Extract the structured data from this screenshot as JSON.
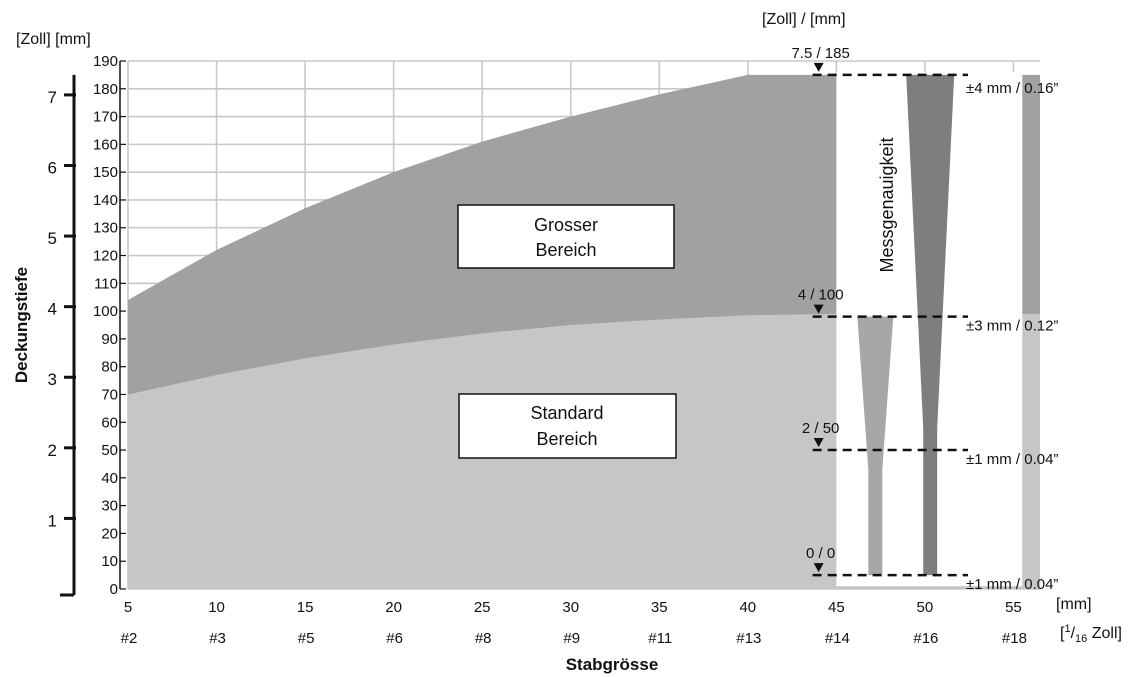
{
  "chart_data": {
    "type": "area",
    "title": "",
    "xlabel": "Stabgrösse",
    "ylabel": "Deckungstiefe",
    "x_unit_mm": "[mm]",
    "x_unit_inch_prefix": "[",
    "x_unit_inch_num": "1",
    "x_unit_inch_den": "16",
    "x_unit_inch_suffix": " Zoll]",
    "y_unit_left": "[Zoll] [mm]",
    "y_unit_right": "[Zoll] / [mm]",
    "xlim": [
      5,
      56.5
    ],
    "ylim": [
      0,
      190
    ],
    "x_ticks_mm": [
      5,
      10,
      15,
      20,
      25,
      30,
      35,
      40,
      45,
      50,
      55
    ],
    "x_tick_labels_mm": [
      "5",
      "10",
      "15",
      "20",
      "25",
      "30",
      "35",
      "40",
      "45",
      "50",
      "55"
    ],
    "rod_sizes": [
      "#2",
      "#3",
      "#5",
      "#6",
      "#8",
      "#9",
      "#11",
      "#13",
      "#14",
      "#16",
      "#18"
    ],
    "y_ticks_mm": [
      0,
      10,
      20,
      30,
      40,
      50,
      60,
      70,
      80,
      90,
      100,
      110,
      120,
      130,
      140,
      150,
      160,
      170,
      180,
      190
    ],
    "y_ticks_inch": [
      1,
      2,
      3,
      4,
      5,
      6,
      7
    ],
    "y_tick_labels_inch": [
      "1",
      "2",
      "3",
      "4",
      "5",
      "6",
      "7"
    ],
    "series": [
      {
        "name": "Grosser Bereich",
        "color": "#a0a1a1",
        "x": [
          5,
          10,
          15,
          20,
          25,
          30,
          35,
          40,
          45,
          50,
          55,
          56.5
        ],
        "y": [
          104,
          122,
          137,
          150,
          161,
          170,
          178,
          185,
          185,
          185,
          185,
          185
        ]
      },
      {
        "name": "Standard Bereich",
        "color": "#c6c6c6",
        "x": [
          5,
          10,
          15,
          20,
          25,
          30,
          35,
          40,
          45,
          50,
          55,
          56.5
        ],
        "y": [
          70,
          77,
          83,
          88,
          92,
          95,
          97,
          98.5,
          99,
          99,
          99,
          99
        ]
      }
    ],
    "region_labels": [
      {
        "line1": "Grosser",
        "line2": "Bereich"
      },
      {
        "line1": "Standard",
        "line2": "Bereich"
      }
    ],
    "accuracy_panel": {
      "title": "Messgenauigkeit",
      "x_range": [
        45,
        55.5
      ],
      "wedge_dark_color": "#7d7e80",
      "wedge_light_color": "#a6a7a8",
      "wedge_dark_x": 50.3,
      "wedge_light_x": 47.2
    },
    "depth_markers": [
      {
        "label": "7.5 / 185",
        "y": 185,
        "accuracy": "±4 mm / 0.16”"
      },
      {
        "label": "4 / 100",
        "y": 98,
        "accuracy": "±3 mm / 0.12”"
      },
      {
        "label": "2 / 50",
        "y": 50,
        "accuracy": "±1 mm / 0.04”"
      },
      {
        "label": "0 / 0",
        "y": 5,
        "accuracy": "±1 mm / 0.04”"
      }
    ],
    "marker_x": 44,
    "grid": true,
    "colors": {
      "grid": "#c8c8c8",
      "panel_bg": "#ffffff",
      "dashed": "#111111"
    }
  }
}
